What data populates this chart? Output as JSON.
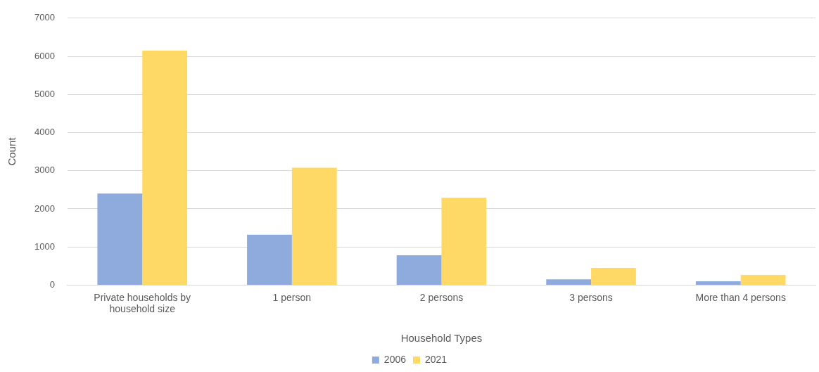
{
  "chart_data": {
    "type": "bar",
    "xlabel": "Household Types",
    "ylabel": "Count",
    "categories": [
      "Private households by household size",
      "1 person",
      "2 persons",
      "3 persons",
      "More than 4 persons"
    ],
    "series": [
      {
        "name": "2006",
        "color": "#8faadc",
        "values": [
          2400,
          1320,
          780,
          150,
          100
        ]
      },
      {
        "name": "2021",
        "color": "#ffd966",
        "values": [
          6150,
          3080,
          2290,
          450,
          265
        ]
      }
    ],
    "ylim": [
      0,
      7000
    ],
    "yticks": [
      0,
      1000,
      2000,
      3000,
      4000,
      5000,
      6000,
      7000
    ],
    "grid": "y",
    "legend": "bottom"
  }
}
